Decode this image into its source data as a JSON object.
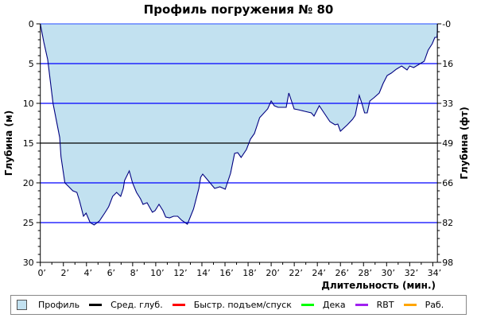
{
  "chart_data": {
    "type": "area",
    "title": "Профиль погружения № 80",
    "xlabel": "Длительность (мин.)",
    "ylabel_left": "Глубина (м)",
    "ylabel_right": "Глубина (фт)",
    "xlim": [
      0,
      34.4
    ],
    "ylim": [
      0,
      30
    ],
    "y_inverted": true,
    "x_ticks": [
      0,
      2,
      4,
      6,
      8,
      10,
      12,
      14,
      16,
      18,
      20,
      22,
      24,
      26,
      28,
      30,
      32,
      34
    ],
    "x_tick_suffix": "’",
    "y_ticks_left": [
      0,
      5,
      10,
      15,
      20,
      25,
      30
    ],
    "y_ticks_right": [
      "-0",
      "16",
      "33",
      "49",
      "66",
      "82",
      "98"
    ],
    "average_depth": 15,
    "grid": true,
    "colors": {
      "fill": "#c2e1f0",
      "line": "#000080",
      "grid": "#0000ff",
      "grid_top": "#4a6cff",
      "avg": "#000000"
    },
    "series": [
      {
        "name": "Профиль",
        "points": [
          [
            0,
            0
          ],
          [
            0.3,
            2.3
          ],
          [
            0.64,
            4.5
          ],
          [
            1.1,
            10
          ],
          [
            1.68,
            14.3
          ],
          [
            1.79,
            16.7
          ],
          [
            2.13,
            20
          ],
          [
            2.48,
            20.5
          ],
          [
            2.82,
            21
          ],
          [
            3.17,
            21.2
          ],
          [
            3.4,
            22.3
          ],
          [
            3.74,
            24.2
          ],
          [
            3.97,
            23.8
          ],
          [
            4.32,
            25
          ],
          [
            4.66,
            25.3
          ],
          [
            5.12,
            24.8
          ],
          [
            5.58,
            23.8
          ],
          [
            5.92,
            23
          ],
          [
            6.27,
            21.7
          ],
          [
            6.61,
            21.2
          ],
          [
            6.96,
            21.7
          ],
          [
            7.19,
            20.7
          ],
          [
            7.3,
            19.7
          ],
          [
            7.71,
            18.5
          ],
          [
            7.99,
            20
          ],
          [
            8.33,
            21.2
          ],
          [
            8.68,
            22
          ],
          [
            8.9,
            22.7
          ],
          [
            9.25,
            22.5
          ],
          [
            9.71,
            23.7
          ],
          [
            9.94,
            23.5
          ],
          [
            10.28,
            22.7
          ],
          [
            10.63,
            23.5
          ],
          [
            10.86,
            24.3
          ],
          [
            11.2,
            24.4
          ],
          [
            11.55,
            24.2
          ],
          [
            11.9,
            24.2
          ],
          [
            12.24,
            24.7
          ],
          [
            12.74,
            25.2
          ],
          [
            13.27,
            23.3
          ],
          [
            13.73,
            20.7
          ],
          [
            13.89,
            19.3
          ],
          [
            14.07,
            18.9
          ],
          [
            14.53,
            19.7
          ],
          [
            15.1,
            20.7
          ],
          [
            15.56,
            20.5
          ],
          [
            16.02,
            20.8
          ],
          [
            16.48,
            18.8
          ],
          [
            16.83,
            16.3
          ],
          [
            17.1,
            16.2
          ],
          [
            17.4,
            16.8
          ],
          [
            17.86,
            15.8
          ],
          [
            18.2,
            14.5
          ],
          [
            18.55,
            13.8
          ],
          [
            19.0,
            11.8
          ],
          [
            19.7,
            10.7
          ],
          [
            20.0,
            9.7
          ],
          [
            20.27,
            10.3
          ],
          [
            20.6,
            10.5
          ],
          [
            20.96,
            10.5
          ],
          [
            21.3,
            10.5
          ],
          [
            21.53,
            8.7
          ],
          [
            21.99,
            10.7
          ],
          [
            22.33,
            10.8
          ],
          [
            22.9,
            11
          ],
          [
            23.48,
            11.2
          ],
          [
            23.71,
            11.6
          ],
          [
            24.17,
            10.3
          ],
          [
            24.63,
            11.3
          ],
          [
            25.09,
            12.3
          ],
          [
            25.54,
            12.7
          ],
          [
            25.77,
            12.6
          ],
          [
            26.0,
            13.5
          ],
          [
            26.6,
            12.7
          ],
          [
            27.05,
            12
          ],
          [
            27.28,
            11.5
          ],
          [
            27.63,
            9
          ],
          [
            27.86,
            10
          ],
          [
            28.09,
            11.2
          ],
          [
            28.32,
            11.2
          ],
          [
            28.55,
            9.7
          ],
          [
            28.9,
            9.3
          ],
          [
            29.36,
            8.7
          ],
          [
            29.7,
            7.5
          ],
          [
            30.05,
            6.5
          ],
          [
            30.4,
            6.2
          ],
          [
            30.85,
            5.7
          ],
          [
            31.3,
            5.3
          ],
          [
            31.77,
            5.8
          ],
          [
            32.0,
            5.3
          ],
          [
            32.34,
            5.5
          ],
          [
            32.8,
            5.1
          ],
          [
            33.26,
            4.7
          ],
          [
            33.6,
            3.3
          ],
          [
            33.95,
            2.5
          ],
          [
            34.18,
            1.7
          ],
          [
            34.36,
            1.7
          ],
          [
            34.4,
            0.8
          ],
          [
            34.4,
            0
          ]
        ]
      }
    ],
    "legend": [
      {
        "label": "Профиль",
        "color": "#c2e1f0",
        "kind": "box"
      },
      {
        "label": "Сред. глуб.",
        "color": "#000000",
        "kind": "line"
      },
      {
        "label": "Быстр. подъем/спуск",
        "color": "#ff0000",
        "kind": "line"
      },
      {
        "label": "Дека",
        "color": "#00ff00",
        "kind": "line"
      },
      {
        "label": "RBT",
        "color": "#a020f0",
        "kind": "line"
      },
      {
        "label": "Раб.",
        "color": "#ffa500",
        "kind": "line"
      }
    ],
    "legend_position": "bottom"
  }
}
